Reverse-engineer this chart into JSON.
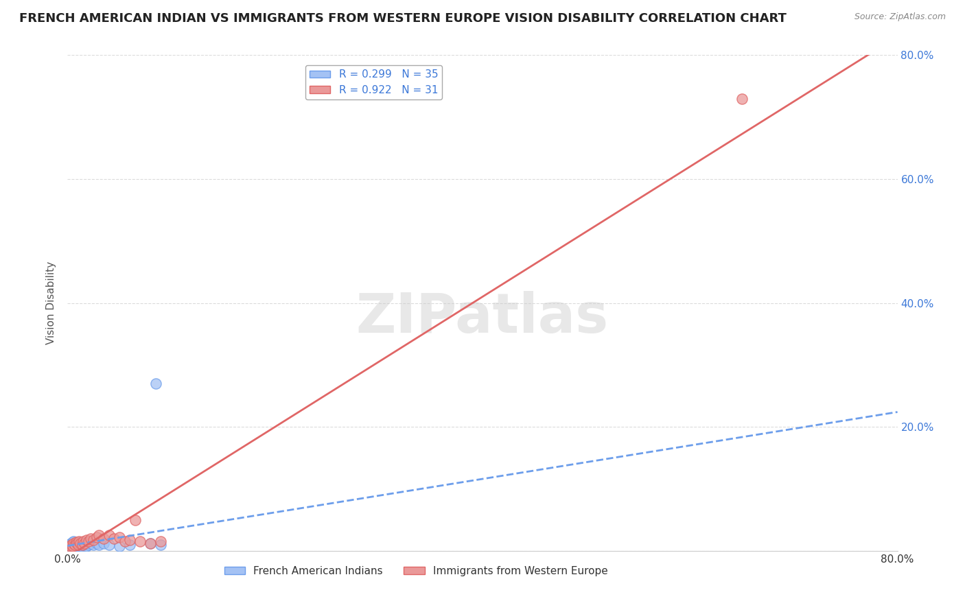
{
  "title": "FRENCH AMERICAN INDIAN VS IMMIGRANTS FROM WESTERN EUROPE VISION DISABILITY CORRELATION CHART",
  "source": "Source: ZipAtlas.com",
  "ylabel": "Vision Disability",
  "watermark": "ZIPatlas",
  "xlim": [
    0,
    0.8
  ],
  "ylim": [
    0,
    0.8
  ],
  "series1_name": "French American Indians",
  "series1_R": 0.299,
  "series1_N": 35,
  "series1_color": "#a4c2f4",
  "series1_edge": "#6d9eeb",
  "series2_name": "Immigrants from Western Europe",
  "series2_R": 0.922,
  "series2_N": 31,
  "series2_color": "#ea9999",
  "series2_edge": "#e06666",
  "blue_scatter_x": [
    0.002,
    0.003,
    0.003,
    0.004,
    0.004,
    0.005,
    0.005,
    0.006,
    0.006,
    0.007,
    0.007,
    0.008,
    0.009,
    0.01,
    0.01,
    0.011,
    0.012,
    0.013,
    0.014,
    0.015,
    0.016,
    0.017,
    0.018,
    0.02,
    0.022,
    0.025,
    0.028,
    0.03,
    0.035,
    0.04,
    0.05,
    0.06,
    0.08,
    0.085,
    0.09
  ],
  "blue_scatter_y": [
    0.005,
    0.008,
    0.012,
    0.006,
    0.01,
    0.008,
    0.014,
    0.01,
    0.015,
    0.008,
    0.012,
    0.01,
    0.012,
    0.008,
    0.014,
    0.01,
    0.012,
    0.008,
    0.01,
    0.012,
    0.01,
    0.014,
    0.008,
    0.01,
    0.012,
    0.01,
    0.012,
    0.01,
    0.012,
    0.01,
    0.008,
    0.01,
    0.012,
    0.27,
    0.01
  ],
  "pink_scatter_x": [
    0.002,
    0.003,
    0.004,
    0.005,
    0.006,
    0.007,
    0.008,
    0.009,
    0.01,
    0.011,
    0.012,
    0.014,
    0.015,
    0.016,
    0.018,
    0.02,
    0.022,
    0.025,
    0.028,
    0.03,
    0.035,
    0.04,
    0.045,
    0.05,
    0.055,
    0.06,
    0.065,
    0.07,
    0.08,
    0.09,
    0.65
  ],
  "pink_scatter_y": [
    0.005,
    0.008,
    0.01,
    0.008,
    0.012,
    0.01,
    0.014,
    0.012,
    0.01,
    0.015,
    0.012,
    0.01,
    0.015,
    0.012,
    0.018,
    0.015,
    0.02,
    0.018,
    0.022,
    0.025,
    0.02,
    0.025,
    0.02,
    0.022,
    0.015,
    0.018,
    0.05,
    0.015,
    0.012,
    0.015,
    0.73
  ],
  "trend_blue_intercept": 0.008,
  "trend_blue_slope": 0.27,
  "trend_pink_intercept": -0.01,
  "trend_pink_slope": 1.05,
  "background_color": "#ffffff",
  "grid_color": "#cccccc",
  "title_fontsize": 13,
  "label_fontsize": 11,
  "tick_fontsize": 11,
  "legend_fontsize": 11,
  "source_fontsize": 9
}
